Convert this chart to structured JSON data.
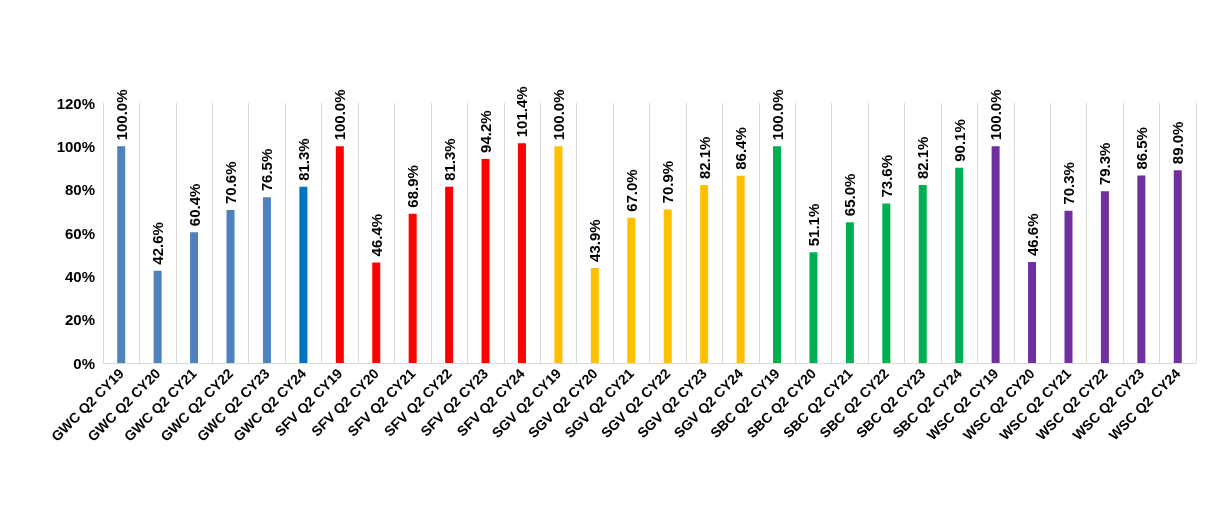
{
  "chart_data": {
    "type": "bar",
    "categories": [
      "GWC Q2 CY19",
      "GWC Q2 CY20",
      "GWC Q2 CY21",
      "GWC Q2 CY22",
      "GWC Q2 CY23",
      "GWC Q2 CY24",
      "SFV Q2 CY19",
      "SFV Q2 CY20",
      "SFV Q2 CY21",
      "SFV Q2 CY22",
      "SFV Q2 CY23",
      "SFV Q2 CY24",
      "SGV Q2 CY19",
      "SGV Q2 CY20",
      "SGV Q2 CY21",
      "SGV Q2 CY22",
      "SGV Q2 CY23",
      "SGV Q2 CY24",
      "SBC Q2 CY19",
      "SBC Q2 CY20",
      "SBC Q2 CY21",
      "SBC Q2 CY22",
      "SBC Q2 CY23",
      "SBC Q2 CY24",
      "WSC Q2 CY19",
      "WSC Q2 CY20",
      "WSC Q2 CY21",
      "WSC Q2 CY22",
      "WSC Q2 CY23",
      "WSC Q2 CY24"
    ],
    "values": [
      100,
      42.6,
      60.4,
      70.6,
      76.5,
      81.3,
      100,
      46.4,
      68.9,
      81.3,
      94.2,
      101.4,
      100,
      43.9,
      67.0,
      70.9,
      82.1,
      86.4,
      100,
      51.1,
      65.0,
      73.6,
      82.1,
      90.1,
      100,
      46.6,
      70.3,
      79.3,
      86.5,
      89.0
    ],
    "value_labels": [
      "100.0%",
      "42.6%",
      "60.4%",
      "70.6%",
      "76.5%",
      "81.3%",
      "100.0%",
      "46.4%",
      "68.9%",
      "81.3%",
      "94.2%",
      "101.4%",
      "100.0%",
      "43.9%",
      "67.0%",
      "70.9%",
      "82.1%",
      "86.4%",
      "100.0%",
      "51.1%",
      "65.0%",
      "73.6%",
      "82.1%",
      "90.1%",
      "100.0%",
      "46.6%",
      "70.3%",
      "79.3%",
      "86.5%",
      "89.0%"
    ],
    "colors": [
      "#4f81bd",
      "#4f81bd",
      "#4f81bd",
      "#4f81bd",
      "#4f81bd",
      "#0070c0",
      "#ff0000",
      "#ff0000",
      "#ff0000",
      "#ff0000",
      "#ff0000",
      "#ff0000",
      "#ffc000",
      "#ffc000",
      "#ffc000",
      "#ffc000",
      "#ffc000",
      "#ffc000",
      "#00b050",
      "#00b050",
      "#00b050",
      "#00b050",
      "#00b050",
      "#00b050",
      "#7030a0",
      "#7030a0",
      "#7030a0",
      "#7030a0",
      "#7030a0",
      "#7030a0"
    ],
    "ylim": [
      0,
      120
    ],
    "yticks": [
      {
        "value": 0,
        "label": "0%"
      },
      {
        "value": 20,
        "label": "20%"
      },
      {
        "value": 40,
        "label": "40%"
      },
      {
        "value": 60,
        "label": "60%"
      },
      {
        "value": 80,
        "label": "80%"
      },
      {
        "value": 100,
        "label": "100%"
      },
      {
        "value": 120,
        "label": "120%"
      }
    ],
    "grid": "x"
  }
}
